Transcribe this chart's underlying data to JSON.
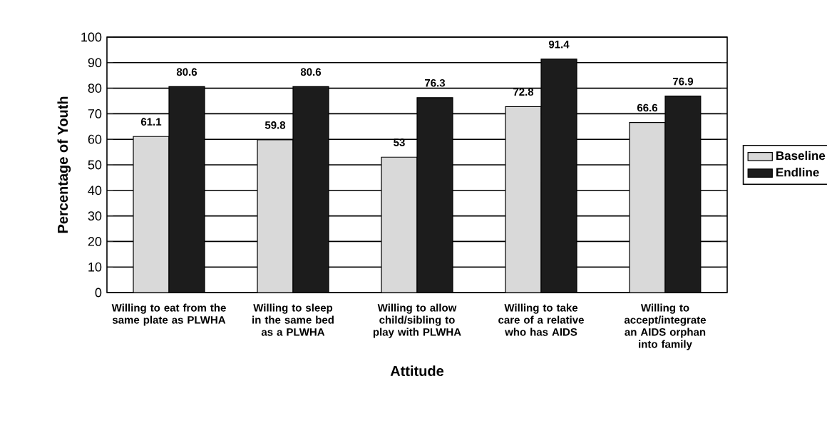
{
  "chart_data": {
    "type": "bar",
    "xlabel": "Attitude",
    "ylabel": "Percentage of Youth",
    "categories": [
      "Willing to eat from the same plate as PLWHA",
      "Willing to sleep in the same bed as a PLWHA",
      "Willing to allow child/sibling to play with PLWHA",
      "Willing to take care of a relative who has AIDS",
      "Willing to accept/integrate an AIDS orphan into family"
    ],
    "series": [
      {
        "name": "Baseline",
        "color": "#d9d9d9",
        "values": [
          61.1,
          59.8,
          53,
          72.8,
          66.6
        ]
      },
      {
        "name": "Endline",
        "color": "#1c1c1c",
        "values": [
          80.6,
          80.6,
          76.3,
          91.4,
          76.9
        ]
      }
    ],
    "ylim": [
      0,
      100
    ],
    "yticks": [
      0,
      10,
      20,
      30,
      40,
      50,
      60,
      70,
      80,
      90,
      100
    ],
    "grid": "y",
    "legend": "right",
    "data_labels": true
  }
}
